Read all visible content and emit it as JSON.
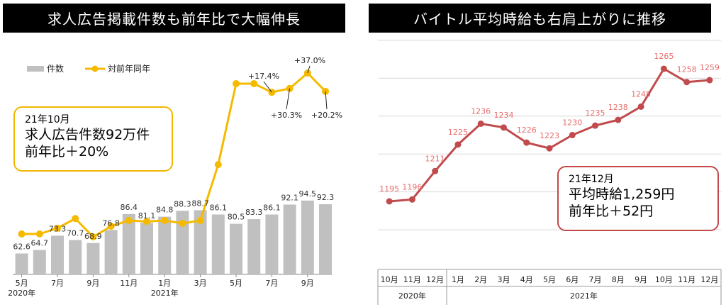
{
  "left": {
    "banner_title": "求人広告掲載件数も前年比で大幅伸長",
    "legend": {
      "bars": "件数",
      "line": "対前年同年"
    },
    "callout": {
      "line1": "21年10月",
      "line2": "求人広告件数92万件",
      "line3": "前年比＋20%"
    },
    "colors": {
      "bar": "#C0C0C0",
      "line": "#F5BA00"
    }
  },
  "right": {
    "banner_title": "バイトル平均時給も右肩上がりに推移",
    "callout": {
      "line1": "21年12月",
      "line2": "平均時給1,259円",
      "line3": "前年比＋52円"
    },
    "colors": {
      "line": "#C04A4C",
      "label": "#E86C6C",
      "grid": "#D9D9D9"
    }
  },
  "chart_data": [
    {
      "type": "bar",
      "categories": [
        "2020-05",
        "2020-06",
        "2020-07",
        "2020-08",
        "2020-09",
        "2020-10",
        "2020-11",
        "2020-12",
        "2021-01",
        "2021-02",
        "2021-03",
        "2021-04",
        "2021-05",
        "2021-06",
        "2021-07",
        "2021-08",
        "2021-09",
        "2021-10"
      ],
      "tick_labels": [
        "5月",
        "",
        "7月",
        "",
        "9月",
        "",
        "11月",
        "",
        "1月",
        "",
        "3月",
        "",
        "5月",
        "",
        "7月",
        "",
        "9月",
        ""
      ],
      "year_labels": [
        {
          "index": 0,
          "text": "2020年"
        },
        {
          "index": 8,
          "text": "2021年"
        }
      ],
      "series": [
        {
          "name": "件数",
          "type": "bar",
          "values": [
            62.6,
            64.7,
            73.3,
            70.7,
            68.9,
            76.8,
            86.4,
            81.1,
            84.8,
            88.3,
            88.7,
            86.1,
            80.5,
            83.3,
            86.1,
            92.1,
            94.5,
            92.3
          ]
        },
        {
          "name": "対前年同年",
          "type": "line",
          "values": [
            -30,
            -30,
            -24,
            -14,
            -33,
            -22,
            -16,
            -17,
            -16,
            -19,
            -16,
            42,
            126,
            126,
            117,
            121,
            137,
            118
          ]
        }
      ],
      "line_annotations": [
        {
          "index": 14,
          "text": "+17.4%"
        },
        {
          "index": 15,
          "text": "+30.3%"
        },
        {
          "index": 16,
          "text": "+37.0%"
        },
        {
          "index": 17,
          "text": "+20.2%"
        }
      ],
      "ylim": [
        0,
        100
      ],
      "legend": "top-left"
    },
    {
      "type": "line",
      "x": [
        "2020-10",
        "2020-11",
        "2020-12",
        "2021-01",
        "2021-02",
        "2021-03",
        "2021-04",
        "2021-05",
        "2021-06",
        "2021-07",
        "2021-08",
        "2021-09",
        "2021-10",
        "2021-11",
        "2021-12"
      ],
      "tick_labels": [
        "10月",
        "11月",
        "12月",
        "1月",
        "2月",
        "3月",
        "4月",
        "5月",
        "6月",
        "7月",
        "8月",
        "9月",
        "10月",
        "11月",
        "12月"
      ],
      "year_labels": [
        {
          "group": [
            0,
            2
          ],
          "text": "2020年"
        },
        {
          "group": [
            3,
            14
          ],
          "text": "2021年"
        }
      ],
      "series": [
        {
          "values": [
            1195,
            1196,
            1211,
            1225,
            1236,
            1234,
            1226,
            1223,
            1230,
            1235,
            1238,
            1245,
            1265,
            1258,
            1259
          ]
        }
      ],
      "ylim": [
        1170,
        1285
      ],
      "grid": true
    }
  ]
}
